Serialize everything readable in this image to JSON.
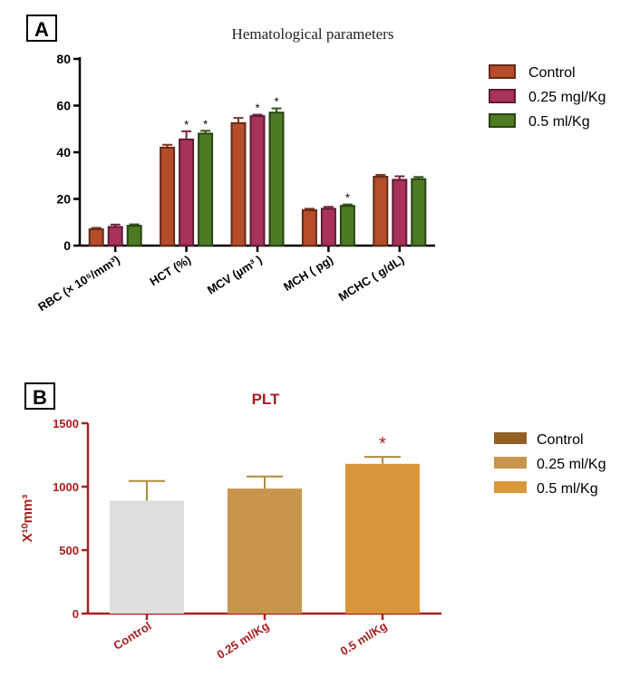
{
  "chart_data": [
    {
      "panel": "A",
      "type": "bar",
      "title": "Hematological parameters",
      "categories": [
        "RBC (× 10⁵/mm³)",
        "HCT (%)",
        "MCV (µm³ )",
        "MCH ( pg)",
        "MCHC ( g/dL)"
      ],
      "series": [
        {
          "name": "Control",
          "values": [
            7,
            42,
            52.5,
            15.2,
            29.5
          ],
          "errors": [
            0.6,
            1.2,
            2.2,
            0.6,
            0.8
          ],
          "color": "#b54d2b"
        },
        {
          "name": "0.25 mgl/Kg",
          "values": [
            8,
            45.5,
            55.5,
            15.8,
            28.2
          ],
          "errors": [
            1.0,
            3.5,
            0.6,
            0.8,
            1.5
          ],
          "color": "#a8325a"
        },
        {
          "name": "0.5 ml/Kg",
          "values": [
            8.5,
            48,
            57,
            17,
            28.5
          ],
          "errors": [
            0.6,
            1.2,
            1.8,
            0.6,
            0.9
          ],
          "color": "#4d7a24"
        }
      ],
      "significance": [
        [
          false,
          false,
          false
        ],
        [
          false,
          true,
          true
        ],
        [
          false,
          true,
          true
        ],
        [
          false,
          false,
          true
        ],
        [
          false,
          false,
          false
        ]
      ],
      "ylim": [
        0,
        80
      ],
      "yticks": [
        0,
        20,
        40,
        60,
        80
      ],
      "legend": "top-right",
      "grid": false
    },
    {
      "panel": "B",
      "type": "bar",
      "title": "PLT",
      "ylabel": "X¹⁰mm³",
      "categories": [
        "Control",
        "0.25 ml/Kg",
        "0.5 ml/Kg"
      ],
      "values": [
        890,
        985,
        1180
      ],
      "errors": [
        155,
        95,
        55
      ],
      "colors": [
        "#dedede",
        "#c9954c",
        "#d9963a"
      ],
      "significance": [
        false,
        false,
        true
      ],
      "ylim": [
        0,
        1500
      ],
      "yticks": [
        0,
        500,
        1000,
        1500
      ],
      "legend_entries": [
        {
          "name": "Control",
          "color": "#916124"
        },
        {
          "name": "0.25 ml/Kg",
          "color": "#c9954c"
        },
        {
          "name": "0.5 ml/Kg",
          "color": "#d9963a"
        }
      ],
      "legend": "top-right",
      "grid": false
    }
  ],
  "panel_labels": {
    "a": "A",
    "b": "B"
  },
  "star_symbol": "*"
}
